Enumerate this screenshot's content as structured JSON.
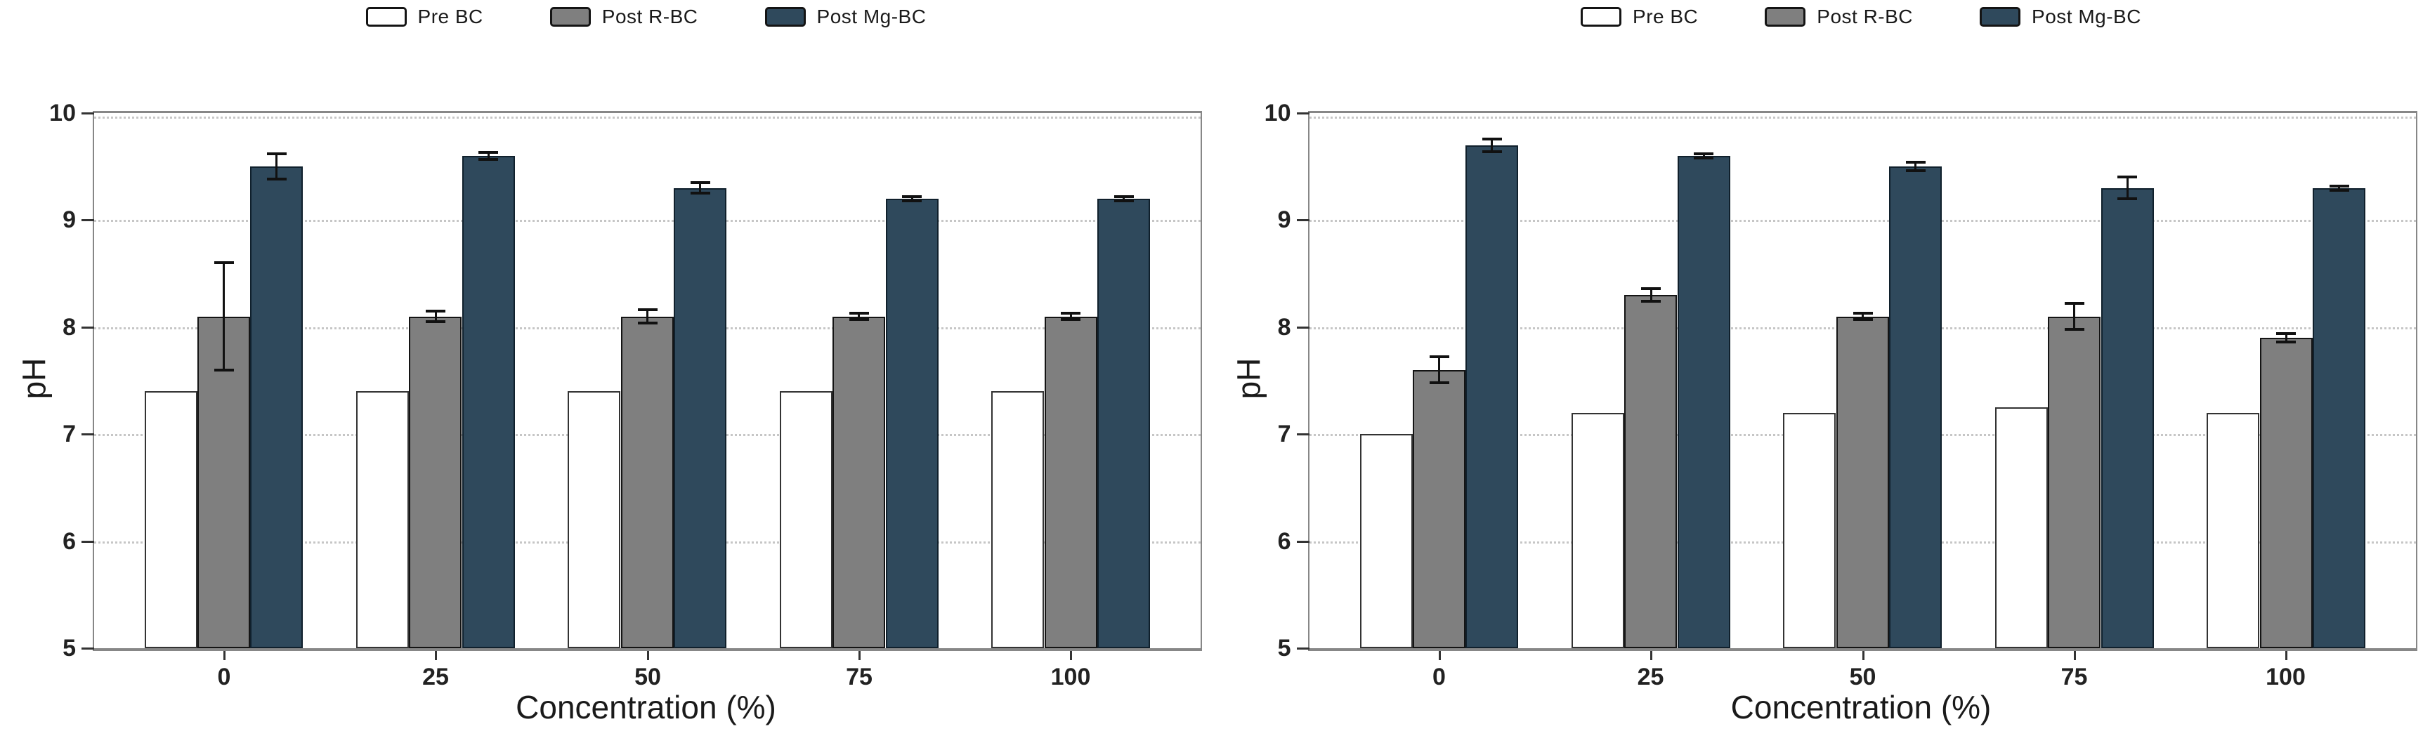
{
  "figure": {
    "background": "#ffffff",
    "panels": 2
  },
  "chart_data": [
    {
      "type": "bar",
      "panel": "left",
      "xlabel": "Concentration (%)",
      "ylabel": "pH",
      "ylim": [
        5,
        10
      ],
      "yticks": [
        5,
        6,
        7,
        8,
        9,
        10
      ],
      "categories": [
        "0",
        "25",
        "50",
        "75",
        "100"
      ],
      "grid": "horizontal dotted at 6,7,8,9,10",
      "legend_position": "top center",
      "colors": {
        "pre_bc": "#ffffff",
        "post_r_bc": "#7f7f7f",
        "post_mg_bc": "#2f495c"
      },
      "series": [
        {
          "name": "Pre BC",
          "color": "#ffffff",
          "edge": "#333333",
          "values": [
            7.4,
            7.4,
            7.4,
            7.4,
            7.4
          ],
          "errors": [
            0,
            0,
            0,
            0,
            0
          ]
        },
        {
          "name": "Post R-BC",
          "color": "#7f7f7f",
          "edge": "#141414",
          "values": [
            8.1,
            8.1,
            8.1,
            8.1,
            8.1
          ],
          "errors": [
            0.5,
            0.05,
            0.06,
            0.03,
            0.03
          ]
        },
        {
          "name": "Post Mg-BC",
          "color": "#2f495c",
          "edge": "#10202c",
          "values": [
            9.5,
            9.6,
            9.3,
            9.2,
            9.2
          ],
          "errors": [
            0.12,
            0.03,
            0.05,
            0.02,
            0.02
          ]
        }
      ]
    },
    {
      "type": "bar",
      "panel": "right",
      "xlabel": "Concentration (%)",
      "ylabel": "pH",
      "ylim": [
        5,
        10
      ],
      "yticks": [
        5,
        6,
        7,
        8,
        9,
        10
      ],
      "categories": [
        "0",
        "25",
        "50",
        "75",
        "100"
      ],
      "grid": "horizontal dotted at 6,7,8,9,10",
      "legend_position": "top center",
      "colors": {
        "pre_bc": "#ffffff",
        "post_r_bc": "#7f7f7f",
        "post_mg_bc": "#2f495c"
      },
      "series": [
        {
          "name": "Pre BC",
          "color": "#ffffff",
          "edge": "#333333",
          "values": [
            7.0,
            7.2,
            7.2,
            7.25,
            7.2
          ],
          "errors": [
            0,
            0,
            0,
            0,
            0
          ]
        },
        {
          "name": "Post R-BC",
          "color": "#7f7f7f",
          "edge": "#141414",
          "values": [
            7.6,
            8.3,
            8.1,
            8.1,
            7.9
          ],
          "errors": [
            0.12,
            0.06,
            0.03,
            0.12,
            0.04
          ]
        },
        {
          "name": "Post Mg-BC",
          "color": "#2f495c",
          "edge": "#10202c",
          "values": [
            9.7,
            9.6,
            9.5,
            9.3,
            9.3
          ],
          "errors": [
            0.06,
            0.02,
            0.04,
            0.1,
            0.02
          ]
        }
      ]
    }
  ]
}
